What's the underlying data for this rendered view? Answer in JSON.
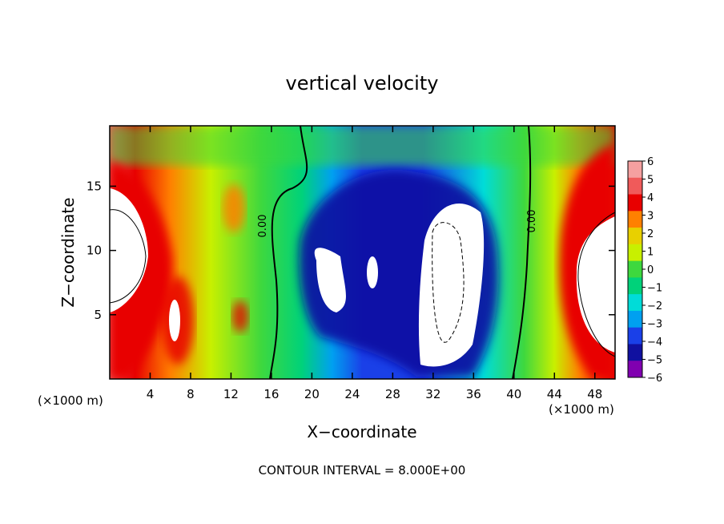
{
  "chart_data": {
    "type": "heatmap",
    "title": "vertical velocity",
    "xlabel": "X−coordinate",
    "ylabel": "Z−coordinate",
    "x_unit_left": "(×1000 m)",
    "x_unit_right": "(×1000 m)",
    "footer": "CONTOUR INTERVAL = 8.000E+00",
    "xlim": [
      0,
      50
    ],
    "ylim": [
      0,
      19.7
    ],
    "x_ticks": [
      4,
      8,
      12,
      16,
      20,
      24,
      28,
      32,
      36,
      40,
      44,
      48
    ],
    "y_ticks": [
      5,
      10,
      15
    ],
    "x_ticklabels": [
      "4",
      "8",
      "12",
      "16",
      "20",
      "24",
      "28",
      "32",
      "36",
      "40",
      "44",
      "48"
    ],
    "y_ticklabels": [
      "5",
      "10",
      "15"
    ],
    "contour_labels": [
      {
        "text": "0.00",
        "x": 15.5,
        "z": 12.0
      },
      {
        "text": "0.00",
        "x": 42.0,
        "z": 12.5
      }
    ],
    "colorbar": {
      "values": [
        6,
        5,
        4,
        3,
        2,
        1,
        0,
        -1,
        -2,
        -3,
        -4,
        -5,
        -6
      ],
      "labels": [
        "6",
        "5",
        "4",
        "3",
        "2",
        "1",
        "0",
        "−1",
        "−2",
        "−3",
        "−4",
        "−5",
        "−6"
      ],
      "colors": [
        "#f5a0a0",
        "#f05a5a",
        "#e80000",
        "#ff8000",
        "#e8d000",
        "#c8f000",
        "#3ed83e",
        "#00d27a",
        "#00dcd8",
        "#00a0f0",
        "#1a40e8",
        "#1010a0",
        "#8000b0"
      ]
    },
    "features": [
      {
        "kind": "updraft",
        "x": 1.5,
        "z": 10.0,
        "w": 6
      },
      {
        "kind": "updraft",
        "x": 48.0,
        "z": 10.0,
        "w": 6
      },
      {
        "kind": "updraft",
        "x": 6.5,
        "z": 5.5,
        "w": 5
      },
      {
        "kind": "updraft",
        "x": 12.5,
        "z": 11.0,
        "w": 3
      },
      {
        "kind": "downdraft",
        "x": 22.0,
        "z": 8.0,
        "w": -6
      },
      {
        "kind": "downdraft",
        "x": 33.5,
        "z": 8.0,
        "w": -6
      }
    ]
  }
}
